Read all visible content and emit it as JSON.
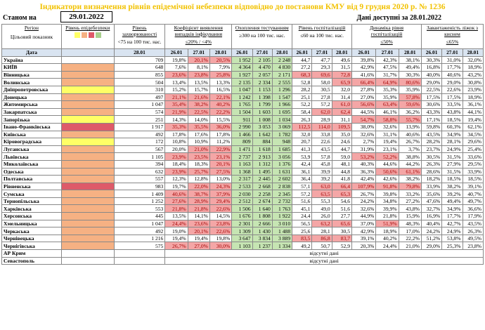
{
  "title": "Індикатори визначення рівнів епідемічної небезпеки відповідно до постанови КМУ від 9 грудня 2020 р. № 1236",
  "status": {
    "label": "Станом на",
    "date": "29.01.2022",
    "available": "Дані доступні за 28.01.2022"
  },
  "headers": {
    "region": "Регіон",
    "indicator": "Цільовий показник",
    "date_label": "Дата",
    "level": "Рівень епідебезпеки",
    "incidence": "Рівень захворюваності",
    "incidence_sub": "<75 на 100 тис. нас.",
    "detection": "Коефіцієнт виявлення випадків інфікування",
    "detection_sub": "≤20% / <4%",
    "testing": "Охоплення тестуванням",
    "testing_sub": "≥300 на 100 тис. нас.",
    "hosp": "Рівень госпіталізацій",
    "hosp_sub": "≤60 на 100 тис. нас.",
    "dyn": "Динаміка рівня госпіталізацій",
    "dyn_sub": "≤50%",
    "oxy": "Завантаженість ліжок з киснем",
    "oxy_sub": "≤65%",
    "d1": "26.01",
    "d2": "27.01",
    "d3": "28.01"
  },
  "missing_text": "відсутні дані",
  "rows": [
    {
      "name": "Україна",
      "level": "",
      "inc": "709",
      "det": [
        "19,8%",
        "20,1%",
        "20,5%"
      ],
      "detc": [
        "",
        "red",
        "red"
      ],
      "test": [
        "1 952",
        "2 105",
        "2 248"
      ],
      "testc": [
        "green",
        "green",
        "green"
      ],
      "hosp": [
        "44,7",
        "47,7",
        "49,6"
      ],
      "hospc": [
        "",
        "",
        ""
      ],
      "dyn": [
        "39,8%",
        "42,3%",
        "38,1%"
      ],
      "dync": [
        "",
        "",
        ""
      ],
      "oxy": [
        "30,3%",
        "31,0%",
        "32,0%"
      ]
    },
    {
      "name": "КИЇВ",
      "level": "orange",
      "inc": "648",
      "det": [
        "7,6%",
        "8,1%",
        "7,9%"
      ],
      "detc": [
        "",
        "",
        ""
      ],
      "test": [
        "4 364",
        "4 470",
        "4 830"
      ],
      "testc": [
        "green",
        "green",
        "green"
      ],
      "hosp": [
        "27,2",
        "29,3",
        "31,5"
      ],
      "hospc": [
        "",
        "",
        ""
      ],
      "dyn": [
        "42,9%",
        "47,5%",
        "49,4%"
      ],
      "dync": [
        "",
        "",
        ""
      ],
      "oxy": [
        "16,8%",
        "17,7%",
        "18,9%"
      ]
    },
    {
      "name": "Вінницька",
      "level": "orange",
      "inc": "855",
      "det": [
        "23,6%",
        "23,8%",
        "25,8%"
      ],
      "detc": [
        "red",
        "red",
        "red"
      ],
      "test": [
        "1 927",
        "2 057",
        "2 171"
      ],
      "testc": [
        "green",
        "green",
        "green"
      ],
      "hosp": [
        "68,3",
        "69,6",
        "72,8"
      ],
      "hospc": [
        "red",
        "red",
        "red"
      ],
      "dyn": [
        "41,6%",
        "31,7%",
        "30,3%"
      ],
      "dync": [
        "",
        "",
        ""
      ],
      "oxy": [
        "40,0%",
        "40,6%",
        "43,2%"
      ]
    },
    {
      "name": "Волинська",
      "level": "orange",
      "inc": "504",
      "det": [
        "13,4%",
        "13,5%",
        "13,3%"
      ],
      "detc": [
        "",
        "",
        ""
      ],
      "test": [
        "2 135",
        "2 334",
        "2 555"
      ],
      "testc": [
        "green",
        "green",
        "green"
      ],
      "hosp": [
        "52,8",
        "58,0",
        "65,9"
      ],
      "hospc": [
        "",
        "",
        "red"
      ],
      "dyn": [
        "66,4%",
        "64,9%",
        "80,6%"
      ],
      "dync": [
        "red",
        "red",
        "red"
      ],
      "oxy": [
        "29,0%",
        "29,0%",
        "30,8%"
      ]
    },
    {
      "name": "Дніпропетровська",
      "level": "yellow",
      "inc": "310",
      "det": [
        "15,2%",
        "15,7%",
        "16,5%"
      ],
      "detc": [
        "",
        "",
        ""
      ],
      "test": [
        "1 047",
        "1 153",
        "1 296"
      ],
      "testc": [
        "green",
        "green",
        "green"
      ],
      "hosp": [
        "28,2",
        "30,5",
        "32,0"
      ],
      "hospc": [
        "",
        "",
        ""
      ],
      "dyn": [
        "27,8%",
        "35,3%",
        "35,9%"
      ],
      "dync": [
        "",
        "",
        ""
      ],
      "oxy": [
        "22,5%",
        "22,6%",
        "23,9%"
      ]
    },
    {
      "name": "Донецька",
      "level": "orange",
      "inc": "497",
      "det": [
        "21,1%",
        "21,6%",
        "22,1%"
      ],
      "detc": [
        "red",
        "red",
        "red"
      ],
      "test": [
        "1 242",
        "1 398",
        "1 547"
      ],
      "testc": [
        "green",
        "green",
        "green"
      ],
      "hosp": [
        "25,1",
        "27,8",
        "31,4"
      ],
      "hospc": [
        "",
        "",
        ""
      ],
      "dyn": [
        "27,0%",
        "35,9%",
        "57,8%"
      ],
      "dync": [
        "",
        "",
        "red"
      ],
      "oxy": [
        "17,5%",
        "17,5%",
        "18,9%"
      ]
    },
    {
      "name": "Житомирська",
      "level": "orange",
      "inc": "1 047",
      "det": [
        "35,4%",
        "38,2%",
        "40,2%"
      ],
      "detc": [
        "red",
        "red",
        "red"
      ],
      "test": [
        "1 765",
        "1 799",
        "1 966"
      ],
      "testc": [
        "green",
        "green",
        "green"
      ],
      "hosp": [
        "52,2",
        "57,2",
        "61,0"
      ],
      "hospc": [
        "",
        "",
        "red"
      ],
      "dyn": [
        "56,6%",
        "63,4%",
        "59,6%"
      ],
      "dync": [
        "red",
        "red",
        "red"
      ],
      "oxy": [
        "30,6%",
        "33,5%",
        "36,1%"
      ]
    },
    {
      "name": "Закарпатська",
      "level": "orange",
      "inc": "574",
      "det": [
        "21,9%",
        "22,5%",
        "22,2%"
      ],
      "detc": [
        "red",
        "red",
        "red"
      ],
      "test": [
        "1 504",
        "1 603",
        "1 695"
      ],
      "testc": [
        "green",
        "green",
        "green"
      ],
      "hosp": [
        "58,4",
        "62,0",
        "62,4"
      ],
      "hospc": [
        "",
        "red",
        "red"
      ],
      "dyn": [
        "44,5%",
        "46,1%",
        "36,2%"
      ],
      "dync": [
        "",
        "",
        ""
      ],
      "oxy": [
        "43,3%",
        "43,8%",
        "44,1%"
      ]
    },
    {
      "name": "Запорізька",
      "level": "yellow",
      "inc": "251",
      "det": [
        "14,3%",
        "14,0%",
        "15,5%"
      ],
      "detc": [
        "",
        "",
        ""
      ],
      "test": [
        "911",
        "1 008",
        "1 034"
      ],
      "testc": [
        "green",
        "green",
        "green"
      ],
      "hosp": [
        "26,3",
        "28,9",
        "31,1"
      ],
      "hospc": [
        "",
        "",
        ""
      ],
      "dyn": [
        "54,7%",
        "58,8%",
        "55,7%"
      ],
      "dync": [
        "red",
        "red",
        "red"
      ],
      "oxy": [
        "17,1%",
        "18,5%",
        "19,4%"
      ]
    },
    {
      "name": "Івано-Франківська",
      "level": "darkred",
      "inc": "1 917",
      "det": [
        "35,3%",
        "35,5%",
        "36,0%"
      ],
      "detc": [
        "red",
        "red",
        "red"
      ],
      "test": [
        "2 990",
        "3 053",
        "3 069"
      ],
      "testc": [
        "green",
        "green",
        "green"
      ],
      "hosp": [
        "112,5",
        "114,0",
        "109,5"
      ],
      "hospc": [
        "red",
        "red",
        "red"
      ],
      "dyn": [
        "38,0%",
        "32,6%",
        "13,9%"
      ],
      "dync": [
        "",
        "",
        ""
      ],
      "oxy": [
        "59,8%",
        "60,3%",
        "62,1%"
      ]
    },
    {
      "name": "Київська",
      "level": "orange",
      "inc": "492",
      "det": [
        "17,8%",
        "17,6%",
        "17,8%"
      ],
      "detc": [
        "",
        "",
        ""
      ],
      "test": [
        "1 466",
        "1 642",
        "1 782"
      ],
      "testc": [
        "green",
        "green",
        "green"
      ],
      "hosp": [
        "32,0",
        "33,8",
        "35,0"
      ],
      "hospc": [
        "",
        "",
        ""
      ],
      "dyn": [
        "32,6%",
        "31,1%",
        "40,6%"
      ],
      "dync": [
        "",
        "",
        ""
      ],
      "oxy": [
        "43,5%",
        "34,9%",
        "34,5%"
      ]
    },
    {
      "name": "Кіровоградська",
      "level": "yellow",
      "inc": "172",
      "det": [
        "10,8%",
        "10,9%",
        "11,2%"
      ],
      "detc": [
        "",
        "",
        ""
      ],
      "test": [
        "809",
        "884",
        "948"
      ],
      "testc": [
        "green",
        "green",
        "green"
      ],
      "hosp": [
        "20,7",
        "22,6",
        "24,6"
      ],
      "hospc": [
        "",
        "",
        ""
      ],
      "dyn": [
        "2,7%",
        "19,4%",
        "26,7%"
      ],
      "dync": [
        "",
        "",
        ""
      ],
      "oxy": [
        "28,2%",
        "28,1%",
        "29,6%"
      ]
    },
    {
      "name": "Луганська",
      "level": "orange",
      "inc": "567",
      "det": [
        "20,0%",
        "21,0%",
        "22,9%"
      ],
      "detc": [
        "",
        "red",
        "red"
      ],
      "test": [
        "1 471",
        "1 618",
        "1 685"
      ],
      "testc": [
        "green",
        "green",
        "green"
      ],
      "hosp": [
        "41,3",
        "43,5",
        "44,7"
      ],
      "hospc": [
        "",
        "",
        ""
      ],
      "dyn": [
        "31,9%",
        "23,1%",
        "3,7%"
      ],
      "dync": [
        "",
        "",
        ""
      ],
      "oxy": [
        "23,7%",
        "24,9%",
        "25,4%"
      ]
    },
    {
      "name": "Львівська",
      "level": "orange",
      "inc": "1 105",
      "det": [
        "23,9%",
        "23,5%",
        "23,1%"
      ],
      "detc": [
        "red",
        "red",
        "red"
      ],
      "test": [
        "2 737",
        "2 913",
        "3 056"
      ],
      "testc": [
        "green",
        "green",
        "green"
      ],
      "hosp": [
        "53,9",
        "57,8",
        "59,0"
      ],
      "hospc": [
        "",
        "",
        ""
      ],
      "dyn": [
        "53,2%",
        "52,2%",
        "38,8%"
      ],
      "dync": [
        "red",
        "red",
        ""
      ],
      "oxy": [
        "30,5%",
        "31,5%",
        "33,6%"
      ]
    },
    {
      "name": "Миколаївська",
      "level": "orange",
      "inc": "394",
      "det": [
        "18,4%",
        "18,3%",
        "20,1%"
      ],
      "detc": [
        "",
        "",
        "red"
      ],
      "test": [
        "1 163",
        "1 312",
        "1 376"
      ],
      "testc": [
        "green",
        "green",
        "green"
      ],
      "hosp": [
        "42,4",
        "45,8",
        "48,1"
      ],
      "hospc": [
        "",
        "",
        ""
      ],
      "dyn": [
        "40,3%",
        "44,6%",
        "44,2%"
      ],
      "dync": [
        "",
        "",
        ""
      ],
      "oxy": [
        "26,3%",
        "27,9%",
        "29,5%"
      ]
    },
    {
      "name": "Одеська",
      "level": "orange",
      "inc": "632",
      "det": [
        "23,9%",
        "25,7%",
        "27,5%"
      ],
      "detc": [
        "red",
        "red",
        "red"
      ],
      "test": [
        "1 368",
        "1 495",
        "1 631"
      ],
      "testc": [
        "green",
        "green",
        "green"
      ],
      "hosp": [
        "36,1",
        "39,9",
        "44,8"
      ],
      "hospc": [
        "",
        "",
        ""
      ],
      "dyn": [
        "36,3%",
        "50,6%",
        "61,1%"
      ],
      "dync": [
        "",
        "red",
        "red"
      ],
      "oxy": [
        "28,6%",
        "31,5%",
        "33,9%"
      ]
    },
    {
      "name": "Полтавська",
      "level": "orange",
      "inc": "557",
      "det": [
        "12,3%",
        "12,8%",
        "13,0%"
      ],
      "detc": [
        "",
        "",
        ""
      ],
      "test": [
        "2 317",
        "2 445",
        "2 602"
      ],
      "testc": [
        "green",
        "green",
        "green"
      ],
      "hosp": [
        "36,4",
        "39,2",
        "41,8"
      ],
      "hospc": [
        "",
        "",
        ""
      ],
      "dyn": [
        "42,4%",
        "42,6%",
        "38,2%"
      ],
      "dync": [
        "",
        "",
        ""
      ],
      "oxy": [
        "18,2%",
        "18,5%",
        "18,5%"
      ]
    },
    {
      "name": "Рівненська",
      "level": "darkred",
      "inc": "983",
      "det": [
        "19,7%",
        "22,0%",
        "24,3%"
      ],
      "detc": [
        "",
        "red",
        "red"
      ],
      "test": [
        "2 533",
        "2 668",
        "2 838"
      ],
      "testc": [
        "green",
        "green",
        "green"
      ],
      "hosp": [
        "57,1",
        "63,0",
        "66,4"
      ],
      "hospc": [
        "",
        "red",
        "red"
      ],
      "dyn": [
        "107,9%",
        "91,8%",
        "79,8%"
      ],
      "dync": [
        "red",
        "red",
        "red"
      ],
      "oxy": [
        "33,9%",
        "38,2%",
        "39,1%"
      ]
    },
    {
      "name": "Сумська",
      "level": "orange",
      "inc": "1 409",
      "det": [
        "40,6%",
        "38,7%",
        "37,9%"
      ],
      "detc": [
        "red",
        "red",
        "red"
      ],
      "test": [
        "2 030",
        "2 258",
        "2 345"
      ],
      "testc": [
        "green",
        "green",
        "green"
      ],
      "hosp": [
        "57,2",
        "63,5",
        "65,3"
      ],
      "hospc": [
        "",
        "red",
        "red"
      ],
      "dyn": [
        "26,7%",
        "39,8%",
        "33,2%"
      ],
      "dync": [
        "",
        "",
        ""
      ],
      "oxy": [
        "35,6%",
        "39,2%",
        "40,7%"
      ]
    },
    {
      "name": "Тернопільська",
      "level": "orange",
      "inc": "1 252",
      "det": [
        "27,6%",
        "28,9%",
        "29,4%"
      ],
      "detc": [
        "red",
        "red",
        "red"
      ],
      "test": [
        "2 512",
        "2 674",
        "2 732"
      ],
      "testc": [
        "green",
        "green",
        "green"
      ],
      "hosp": [
        "51,6",
        "55,3",
        "54,6"
      ],
      "hospc": [
        "",
        "",
        ""
      ],
      "dyn": [
        "24,2%",
        "34,8%",
        "27,2%"
      ],
      "dync": [
        "",
        "",
        ""
      ],
      "oxy": [
        "47,6%",
        "49,4%",
        "49,7%"
      ]
    },
    {
      "name": "Харківська",
      "level": "orange",
      "inc": "553",
      "det": [
        "21,8%",
        "21,8%",
        "22,6%"
      ],
      "detc": [
        "red",
        "red",
        "red"
      ],
      "test": [
        "1 506",
        "1 640",
        "1 763"
      ],
      "testc": [
        "green",
        "green",
        "green"
      ],
      "hosp": [
        "45,1",
        "49,0",
        "51,6"
      ],
      "hospc": [
        "",
        "",
        ""
      ],
      "dyn": [
        "32,6%",
        "39,9%",
        "43,8%"
      ],
      "dync": [
        "",
        "",
        ""
      ],
      "oxy": [
        "32,7%",
        "34,9%",
        "36,6%"
      ]
    },
    {
      "name": "Херсонська",
      "level": "orange",
      "inc": "445",
      "det": [
        "13,5%",
        "14,1%",
        "14,5%"
      ],
      "detc": [
        "",
        "",
        ""
      ],
      "test": [
        "1 676",
        "1 808",
        "1 922"
      ],
      "testc": [
        "green",
        "green",
        "green"
      ],
      "hosp": [
        "24,4",
        "26,0",
        "27,7"
      ],
      "hospc": [
        "",
        "",
        ""
      ],
      "dyn": [
        "44,9%",
        "21,8%",
        "15,9%"
      ],
      "dync": [
        "",
        "",
        ""
      ],
      "oxy": [
        "16,9%",
        "17,7%",
        "17,9%"
      ]
    },
    {
      "name": "Хмельницька",
      "level": "orange",
      "inc": "1 047",
      "det": [
        "24,4%",
        "23,6%",
        "23,8%"
      ],
      "detc": [
        "red",
        "red",
        "red"
      ],
      "test": [
        "2 301",
        "2 666",
        "3 010"
      ],
      "testc": [
        "green",
        "green",
        "green"
      ],
      "hosp": [
        "56,5",
        "63,2",
        "65,6"
      ],
      "hospc": [
        "",
        "red",
        "red"
      ],
      "dyn": [
        "37,0%",
        "51,9%",
        "48,3%"
      ],
      "dync": [
        "",
        "red",
        ""
      ],
      "oxy": [
        "40,4%",
        "42,7%",
        "43,5%"
      ]
    },
    {
      "name": "Черкаська",
      "level": "orange",
      "inc": "492",
      "det": [
        "19,0%",
        "20,1%",
        "22,6%"
      ],
      "detc": [
        "",
        "red",
        "red"
      ],
      "test": [
        "1 309",
        "1 430",
        "1 488"
      ],
      "testc": [
        "green",
        "green",
        "green"
      ],
      "hosp": [
        "25,6",
        "28,1",
        "30,5"
      ],
      "hospc": [
        "",
        "",
        ""
      ],
      "dyn": [
        "42,9%",
        "18,9%",
        "17,0%"
      ],
      "dync": [
        "",
        "",
        ""
      ],
      "oxy": [
        "24,2%",
        "24,9%",
        "26,3%"
      ]
    },
    {
      "name": "Чернівецька",
      "level": "orange",
      "inc": "1 216",
      "det": [
        "19,4%",
        "19,4%",
        "19,8%"
      ],
      "detc": [
        "",
        "",
        ""
      ],
      "test": [
        "3 647",
        "3 834",
        "3 889"
      ],
      "testc": [
        "green",
        "green",
        "green"
      ],
      "hosp": [
        "83,5",
        "86,8",
        "83,7"
      ],
      "hospc": [
        "red",
        "red",
        "red"
      ],
      "dyn": [
        "39,1%",
        "40,2%",
        "22,2%"
      ],
      "dync": [
        "",
        "",
        ""
      ],
      "oxy": [
        "51,2%",
        "53,8%",
        "49,5%"
      ]
    },
    {
      "name": "Чернігівська",
      "level": "orange",
      "inc": "575",
      "det": [
        "26,7%",
        "27,0%",
        "30,0%"
      ],
      "detc": [
        "red",
        "red",
        "red"
      ],
      "test": [
        "1 103",
        "1 237",
        "1 334"
      ],
      "testc": [
        "green",
        "green",
        "green"
      ],
      "hosp": [
        "49,2",
        "50,7",
        "52,9"
      ],
      "hospc": [
        "",
        "",
        ""
      ],
      "dyn": [
        "20,3%",
        "24,4%",
        "21,0%"
      ],
      "dync": [
        "",
        "",
        ""
      ],
      "oxy": [
        "29,0%",
        "25,3%",
        "23,8%"
      ]
    }
  ],
  "missing_rows": [
    "АР Крим",
    "Севастополь"
  ]
}
